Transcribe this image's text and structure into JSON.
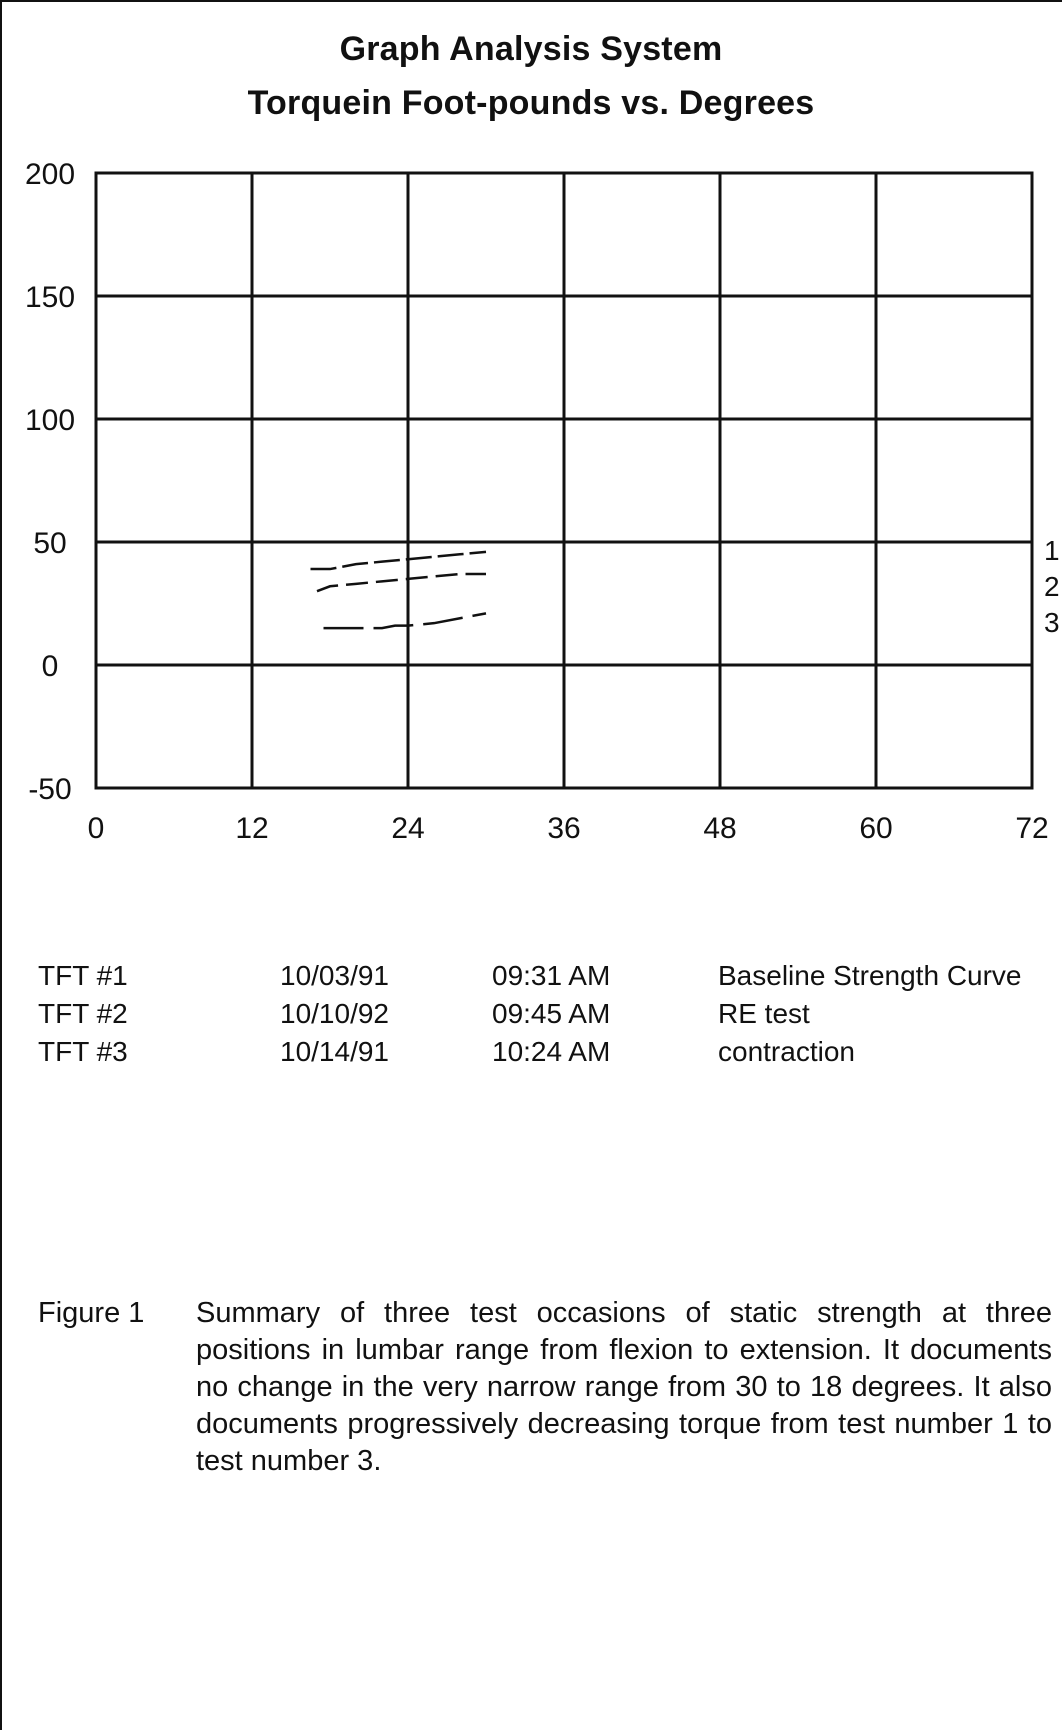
{
  "chart_data": {
    "type": "line",
    "title": "Graph Analysis System",
    "subtitle": "Torquein Foot-pounds vs. Degrees",
    "xlabel": "",
    "ylabel": "",
    "xlim": [
      0,
      72
    ],
    "ylim": [
      -50,
      200
    ],
    "x_ticks": [
      0,
      12,
      24,
      36,
      48,
      60,
      72
    ],
    "y_ticks": [
      200,
      150,
      100,
      50,
      0,
      -50
    ],
    "x_tick_labels": [
      "0",
      "12",
      "24",
      "36",
      "48",
      "60",
      "72"
    ],
    "y_tick_labels": [
      "200",
      "150",
      "100",
      "50",
      "0",
      "-50"
    ],
    "grid": true,
    "series": [
      {
        "name": "1",
        "x": [
          16.5,
          18,
          20,
          22,
          24,
          26,
          28,
          30
        ],
        "y": [
          39,
          39,
          41,
          42,
          43,
          44,
          45,
          46
        ]
      },
      {
        "name": "2",
        "x": [
          17,
          18,
          20,
          22,
          24,
          26,
          28,
          30
        ],
        "y": [
          30,
          32,
          33,
          34,
          35,
          36,
          37,
          37
        ]
      },
      {
        "name": "3",
        "x": [
          17.5,
          20,
          22,
          23,
          24,
          26,
          28,
          30
        ],
        "y": [
          15,
          15,
          15,
          16,
          16,
          17,
          19,
          21
        ]
      }
    ]
  },
  "legend": [
    {
      "id": "TFT #1",
      "date": "10/03/91",
      "time": "09:31 AM",
      "note": "Baseline Strength Curve"
    },
    {
      "id": "TFT #2",
      "date": "10/10/92",
      "time": "09:45 AM",
      "note": "RE test"
    },
    {
      "id": "TFT #3",
      "date": "10/14/91",
      "time": "10:24 AM",
      "note": "contraction"
    }
  ],
  "caption": {
    "label": "Figure 1",
    "text": "Summary of three test occasions of static strength at three positions in lumbar range from flexion to extension.  It documents no change in the very narrow range from 30 to 18 degrees.  It also documents progressively decreasing torque from test number 1 to test number 3."
  }
}
